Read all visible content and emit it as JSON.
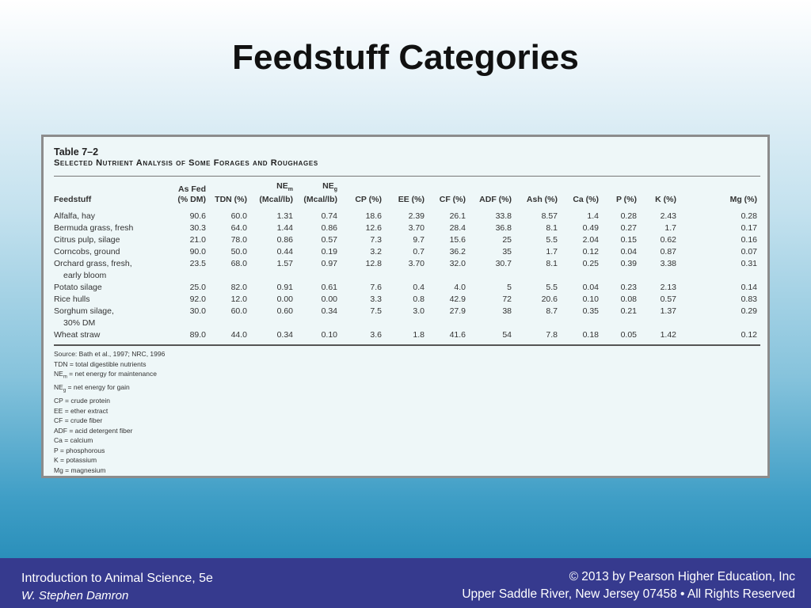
{
  "slide": {
    "title": "Feedstuff Categories"
  },
  "table": {
    "number": "Table 7–2",
    "title": "Selected Nutrient Analysis of Some Forages and Roughages",
    "headers": {
      "feedstuff": "Feedstuff",
      "as_fed_line1": "As Fed",
      "as_fed_line2": "(% DM)",
      "tdn": "TDN (%)",
      "nem_base": "NE",
      "nem_sub": "m",
      "nem_unit": "(Mcal/lb)",
      "neg_base": "NE",
      "neg_sub": "g",
      "neg_unit": "(Mcal/lb)",
      "cp": "CP (%)",
      "ee": "EE (%)",
      "cf": "CF (%)",
      "adf": "ADF (%)",
      "ash": "Ash (%)",
      "ca": "Ca (%)",
      "p": "P (%)",
      "k": "K (%)",
      "mg": "Mg (%)"
    },
    "rows": [
      {
        "name": "Alfalfa, hay",
        "name2": "",
        "values": [
          "90.6",
          "60.0",
          "1.31",
          "0.74",
          "18.6",
          "2.39",
          "26.1",
          "33.8",
          "8.57",
          "1.4",
          "0.28",
          "2.43",
          "0.28"
        ]
      },
      {
        "name": "Bermuda grass, fresh",
        "name2": "",
        "values": [
          "30.3",
          "64.0",
          "1.44",
          "0.86",
          "12.6",
          "3.70",
          "28.4",
          "36.8",
          "8.1",
          "0.49",
          "0.27",
          "1.7",
          "0.17"
        ]
      },
      {
        "name": "Citrus pulp, silage",
        "name2": "",
        "values": [
          "21.0",
          "78.0",
          "0.86",
          "0.57",
          "7.3",
          "9.7",
          "15.6",
          "25",
          "5.5",
          "2.04",
          "0.15",
          "0.62",
          "0.16"
        ]
      },
      {
        "name": "Corncobs, ground",
        "name2": "",
        "values": [
          "90.0",
          "50.0",
          "0.44",
          "0.19",
          "3.2",
          "0.7",
          "36.2",
          "35",
          "1.7",
          "0.12",
          "0.04",
          "0.87",
          "0.07"
        ]
      },
      {
        "name": "Orchard grass, fresh,",
        "name2": "early bloom",
        "values": [
          "23.5",
          "68.0",
          "1.57",
          "0.97",
          "12.8",
          "3.70",
          "32.0",
          "30.7",
          "8.1",
          "0.25",
          "0.39",
          "3.38",
          "0.31"
        ]
      },
      {
        "name": "Potato silage",
        "name2": "",
        "values": [
          "25.0",
          "82.0",
          "0.91",
          "0.61",
          "7.6",
          "0.4",
          "4.0",
          "5",
          "5.5",
          "0.04",
          "0.23",
          "2.13",
          "0.14"
        ]
      },
      {
        "name": "Rice hulls",
        "name2": "",
        "values": [
          "92.0",
          "12.0",
          "0.00",
          "0.00",
          "3.3",
          "0.8",
          "42.9",
          "72",
          "20.6",
          "0.10",
          "0.08",
          "0.57",
          "0.83"
        ]
      },
      {
        "name": "Sorghum silage,",
        "name2": "30% DM",
        "values": [
          "30.0",
          "60.0",
          "0.60",
          "0.34",
          "7.5",
          "3.0",
          "27.9",
          "38",
          "8.7",
          "0.35",
          "0.21",
          "1.37",
          "0.29"
        ]
      },
      {
        "name": "Wheat straw",
        "name2": "",
        "values": [
          "89.0",
          "44.0",
          "0.34",
          "0.10",
          "3.6",
          "1.8",
          "41.6",
          "54",
          "7.8",
          "0.18",
          "0.05",
          "1.42",
          "0.12"
        ]
      }
    ],
    "source": "Source: Bath et al., 1997; NRC, 1996",
    "legend": {
      "tdn": "TDN = total digestible nutrients",
      "nem_base": "NE",
      "nem_sub": "m",
      "nem_text": " = net energy for maintenance",
      "neg_base": "NE",
      "neg_sub": "g",
      "neg_text": " = net energy for gain",
      "cp": "CP = crude protein",
      "ee": "EE = ether extract",
      "cf": "CF = crude fiber",
      "adf": "ADF = acid detergent fiber",
      "ca": "Ca = calcium",
      "p": "P = phosphorous",
      "k": "K = potassium",
      "mg": "Mg = magnesium"
    }
  },
  "footer": {
    "book": "Introduction to Animal Science, 5e",
    "author": "W. Stephen Damron",
    "copyright": "© 2013 by Pearson Higher Education, Inc",
    "address": "Upper Saddle River, New Jersey 07458 • All Rights Reserved"
  }
}
